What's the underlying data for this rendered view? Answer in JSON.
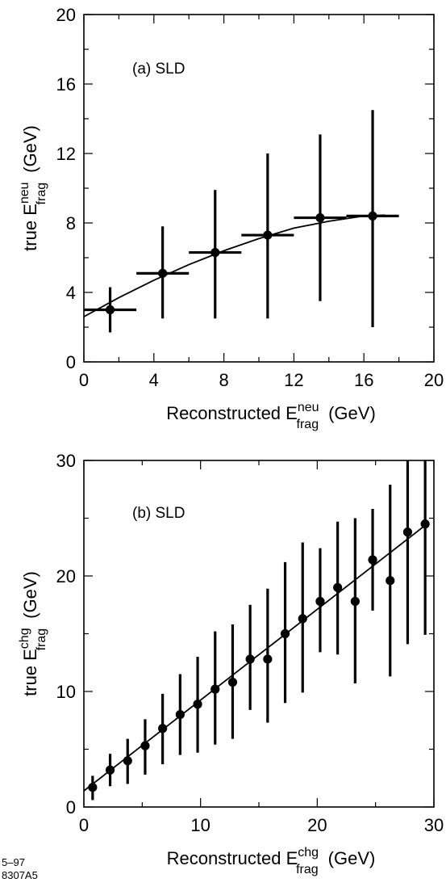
{
  "chart_data": [
    {
      "type": "scatter",
      "panel_label": "(a)",
      "experiment": "SLD",
      "xlabel": {
        "prefix": "Reconstructed E",
        "sup": "neu",
        "sub": "frag",
        "unit": "(GeV)"
      },
      "ylabel": {
        "prefix": "true E",
        "sup": "neu",
        "sub": "frag",
        "unit": "(GeV)"
      },
      "xlim": [
        0,
        20
      ],
      "ylim": [
        0,
        20
      ],
      "xticks": [
        0,
        4,
        8,
        12,
        16,
        20
      ],
      "yticks": [
        0,
        4,
        8,
        12,
        16,
        20
      ],
      "minor_step": 2,
      "grid": false,
      "legend": "none",
      "points": [
        {
          "x": 1.5,
          "y": 3.0,
          "xerr": [
            0,
            3
          ],
          "yerr": [
            1.7,
            4.3
          ]
        },
        {
          "x": 4.5,
          "y": 5.1,
          "xerr": [
            3,
            6
          ],
          "yerr": [
            2.5,
            7.8
          ]
        },
        {
          "x": 7.5,
          "y": 6.3,
          "xerr": [
            6,
            9
          ],
          "yerr": [
            2.5,
            9.9
          ]
        },
        {
          "x": 10.5,
          "y": 7.3,
          "xerr": [
            9,
            12
          ],
          "yerr": [
            2.5,
            12.0
          ]
        },
        {
          "x": 13.5,
          "y": 8.3,
          "xerr": [
            12,
            15
          ],
          "yerr": [
            3.5,
            13.1
          ]
        },
        {
          "x": 16.5,
          "y": 8.4,
          "xerr": [
            15,
            18
          ],
          "yerr": [
            2.0,
            14.5
          ]
        }
      ],
      "fit_curve": [
        [
          0,
          2.6
        ],
        [
          2,
          3.7
        ],
        [
          4,
          4.7
        ],
        [
          6,
          5.6
        ],
        [
          8,
          6.4
        ],
        [
          10,
          7.1
        ],
        [
          12,
          7.7
        ],
        [
          14,
          8.1
        ],
        [
          16,
          8.4
        ],
        [
          17.2,
          8.45
        ]
      ]
    },
    {
      "type": "scatter",
      "panel_label": "(b)",
      "experiment": "SLD",
      "xlabel": {
        "prefix": "Reconstructed E",
        "sup": "chg",
        "sub": "frag",
        "unit": "(GeV)"
      },
      "ylabel": {
        "prefix": "true E",
        "sup": "chg",
        "sub": "frag",
        "unit": "(GeV)"
      },
      "xlim": [
        0,
        30
      ],
      "ylim": [
        0,
        30
      ],
      "xticks": [
        0,
        10,
        20,
        30
      ],
      "yticks": [
        0,
        10,
        20,
        30
      ],
      "minor_step": 5,
      "grid": false,
      "legend": "none",
      "points": [
        {
          "x": 0.75,
          "y": 1.7,
          "yerr": [
            0.6,
            2.7
          ]
        },
        {
          "x": 2.25,
          "y": 3.2,
          "yerr": [
            1.8,
            4.6
          ]
        },
        {
          "x": 3.75,
          "y": 4.0,
          "yerr": [
            2.0,
            5.9
          ]
        },
        {
          "x": 5.25,
          "y": 5.3,
          "yerr": [
            2.8,
            7.6
          ]
        },
        {
          "x": 6.75,
          "y": 6.8,
          "yerr": [
            3.7,
            9.8
          ]
        },
        {
          "x": 8.25,
          "y": 8.0,
          "yerr": [
            4.5,
            11.5
          ]
        },
        {
          "x": 9.75,
          "y": 8.9,
          "yerr": [
            4.7,
            13.0
          ]
        },
        {
          "x": 11.25,
          "y": 10.2,
          "yerr": [
            5.4,
            15.2
          ]
        },
        {
          "x": 12.75,
          "y": 10.8,
          "yerr": [
            5.9,
            15.8
          ]
        },
        {
          "x": 14.25,
          "y": 12.8,
          "yerr": [
            8.4,
            17.5
          ]
        },
        {
          "x": 15.75,
          "y": 12.8,
          "yerr": [
            7.3,
            18.9
          ]
        },
        {
          "x": 17.25,
          "y": 15.0,
          "yerr": [
            9.0,
            21.2
          ]
        },
        {
          "x": 18.75,
          "y": 16.3,
          "yerr": [
            9.9,
            22.9
          ]
        },
        {
          "x": 20.25,
          "y": 17.8,
          "yerr": [
            13.4,
            22.4
          ]
        },
        {
          "x": 21.75,
          "y": 19.0,
          "yerr": [
            13.2,
            24.7
          ]
        },
        {
          "x": 23.25,
          "y": 17.8,
          "yerr": [
            10.7,
            25.0
          ]
        },
        {
          "x": 24.75,
          "y": 21.4,
          "yerr": [
            17.0,
            25.8
          ]
        },
        {
          "x": 26.25,
          "y": 19.6,
          "yerr": [
            11.3,
            27.9
          ]
        },
        {
          "x": 27.75,
          "y": 23.8,
          "yerr": [
            14.1,
            30.0
          ]
        },
        {
          "x": 29.25,
          "y": 24.5,
          "yerr": [
            14.9,
            30.0
          ]
        }
      ],
      "fit_curve": [
        [
          0,
          1.4
        ],
        [
          29.4,
          24.5
        ]
      ]
    }
  ],
  "footer": {
    "line1": "5–97",
    "line2": "8307A5"
  }
}
